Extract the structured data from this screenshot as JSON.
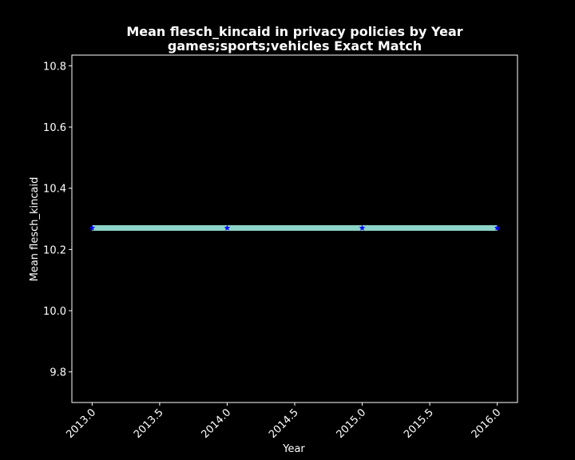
{
  "chart_data": {
    "type": "line",
    "title": "Mean flesch_kincaid in privacy policies by Year",
    "subtitle": "games;sports;vehicles Exact Match",
    "xlabel": "Year",
    "ylabel": "Mean flesch_kincaid",
    "x": [
      2013.0,
      2014.0,
      2015.0,
      2016.0
    ],
    "series": [
      {
        "name": "Mean flesch_kincaid",
        "values": [
          10.27,
          10.27,
          10.27,
          10.27
        ],
        "line_color": "#8dd3c7",
        "marker": "star",
        "marker_color": "#0000ff"
      }
    ],
    "xlim": [
      2012.85,
      2016.15
    ],
    "ylim": [
      9.7,
      10.835
    ],
    "xticks": [
      2013.0,
      2013.5,
      2014.0,
      2014.5,
      2015.0,
      2015.5,
      2016.0
    ],
    "xtick_labels": [
      "2013.0",
      "2013.5",
      "2014.0",
      "2014.5",
      "2015.0",
      "2015.5",
      "2016.0"
    ],
    "yticks": [
      9.8,
      10.0,
      10.2,
      10.4,
      10.6,
      10.8
    ],
    "ytick_labels": [
      "9.8",
      "10.0",
      "10.2",
      "10.4",
      "10.6",
      "10.8"
    ],
    "grid": false,
    "background": "#000000",
    "foreground": "#ffffff"
  }
}
